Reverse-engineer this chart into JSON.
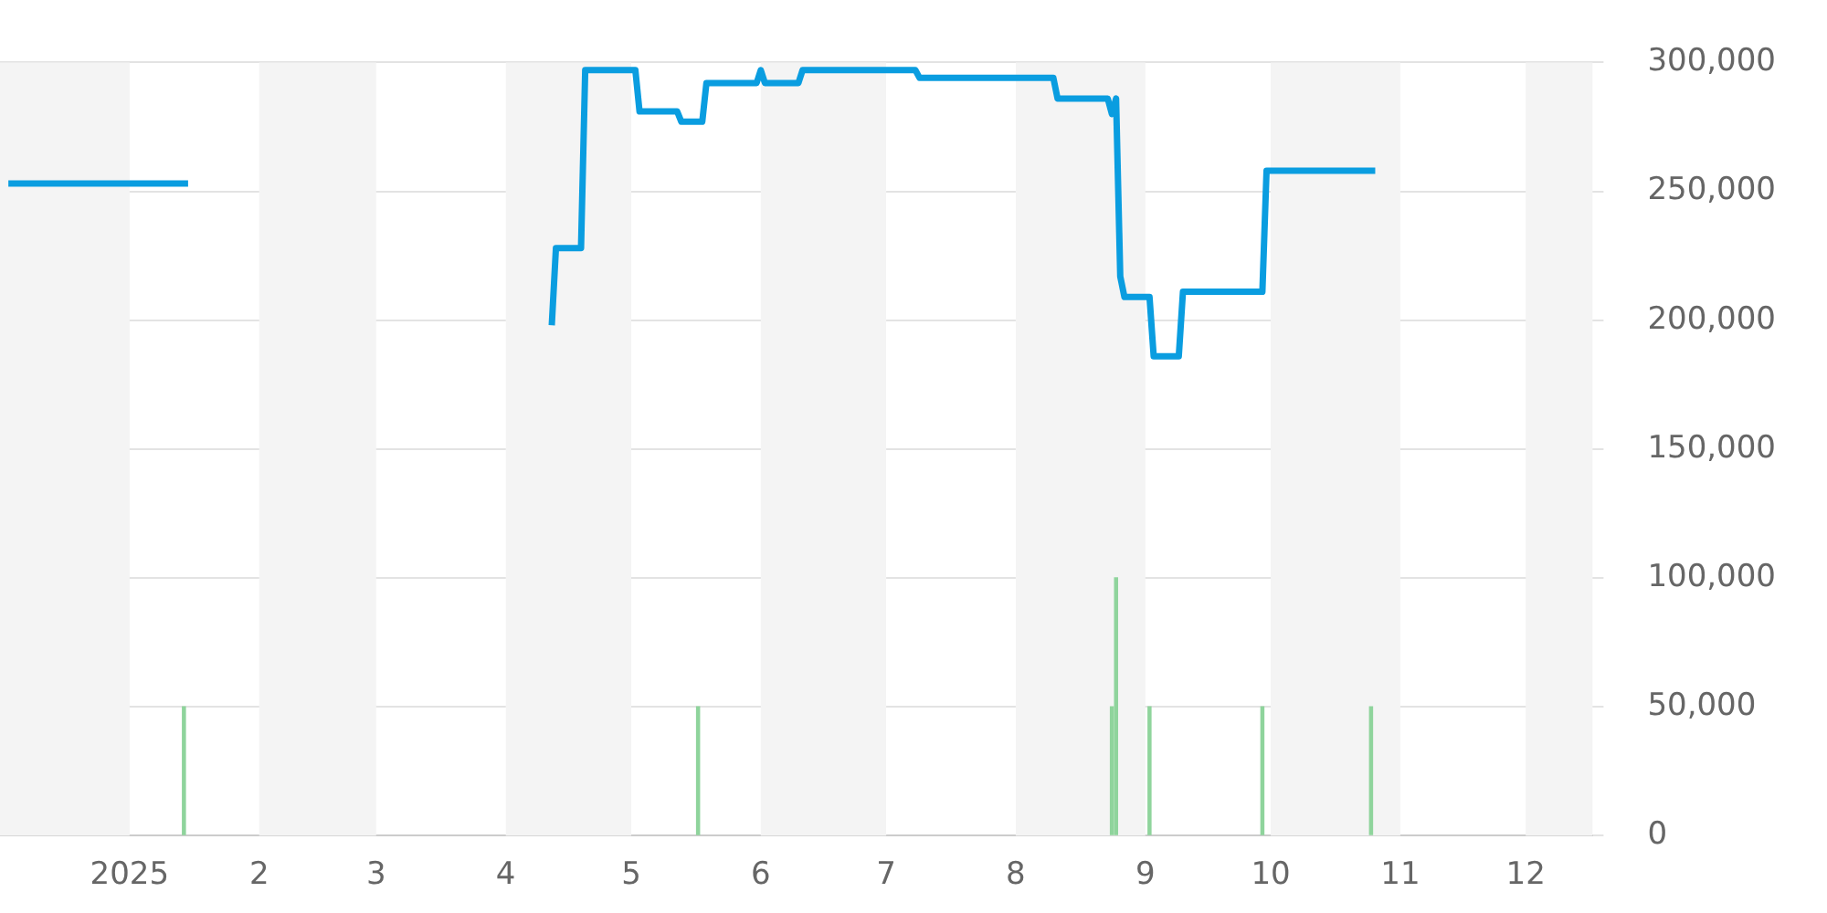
{
  "chart_data": {
    "type": "line",
    "xlim": [
      "2024-12-01",
      "2025-12-17"
    ],
    "xticks": [
      {
        "value": "2025-01-01",
        "label": "2025"
      },
      {
        "value": "2025-02-01",
        "label": "2"
      },
      {
        "value": "2025-03-01",
        "label": "3"
      },
      {
        "value": "2025-04-01",
        "label": "4"
      },
      {
        "value": "2025-05-01",
        "label": "5"
      },
      {
        "value": "2025-06-01",
        "label": "6"
      },
      {
        "value": "2025-07-01",
        "label": "7"
      },
      {
        "value": "2025-08-01",
        "label": "8"
      },
      {
        "value": "2025-09-01",
        "label": "9"
      },
      {
        "value": "2025-10-01",
        "label": "10"
      },
      {
        "value": "2025-11-01",
        "label": "11"
      },
      {
        "value": "2025-12-01",
        "label": "12"
      }
    ],
    "ylim": [
      0,
      300000
    ],
    "yticks": [
      {
        "value": 0,
        "label": "0"
      },
      {
        "value": 50000,
        "label": "50,000"
      },
      {
        "value": 100000,
        "label": "100,000"
      },
      {
        "value": 150000,
        "label": "150,000"
      },
      {
        "value": 200000,
        "label": "200,000"
      },
      {
        "value": 250000,
        "label": "250,000"
      },
      {
        "value": 300000,
        "label": "300,000"
      }
    ],
    "grid": "y",
    "legend": false,
    "bands": [
      {
        "axis": "x",
        "from": "2024-12-01",
        "to": "2025-01-01",
        "color": "#f4f4f4"
      },
      {
        "axis": "x",
        "from": "2025-02-01",
        "to": "2025-03-01",
        "color": "#f4f4f4"
      },
      {
        "axis": "x",
        "from": "2025-04-01",
        "to": "2025-05-01",
        "color": "#f4f4f4"
      },
      {
        "axis": "x",
        "from": "2025-06-01",
        "to": "2025-07-01",
        "color": "#f4f4f4"
      },
      {
        "axis": "x",
        "from": "2025-08-01",
        "to": "2025-09-01",
        "color": "#f4f4f4"
      },
      {
        "axis": "x",
        "from": "2025-10-01",
        "to": "2025-11-01",
        "color": "#f4f4f4"
      },
      {
        "axis": "x",
        "from": "2025-12-01",
        "to": "2025-12-17",
        "color": "#f4f4f4"
      }
    ],
    "series": [
      {
        "type": "bar",
        "color": "#8fd49c",
        "x": [
          "2025-01-14",
          "2025-05-17",
          "2025-08-24",
          "2025-08-25",
          "2025-09-02",
          "2025-09-29",
          "2025-10-25"
        ],
        "values": [
          50000,
          50000,
          50000,
          100000,
          50000,
          50000,
          50000
        ]
      },
      {
        "color": "#0a9de0",
        "x": [
          "2024-12-03",
          "2025-01-15",
          "2025-02-15",
          "2025-04-12",
          "2025-04-13",
          "2025-04-19",
          "2025-04-20",
          "2025-05-02",
          "2025-05-03",
          "2025-05-12",
          "2025-05-13",
          "2025-05-18",
          "2025-05-19",
          "2025-05-31",
          "2025-06-01",
          "2025-06-02",
          "2025-06-10",
          "2025-06-11",
          "2025-07-08",
          "2025-07-09",
          "2025-08-10",
          "2025-08-11",
          "2025-08-23",
          "2025-08-24",
          "2025-08-25",
          "2025-08-26",
          "2025-08-27",
          "2025-09-02",
          "2025-09-03",
          "2025-09-09",
          "2025-09-10",
          "2025-09-29",
          "2025-09-30",
          "2025-10-26"
        ],
        "values": [
          253000,
          253000,
          null,
          198000,
          228000,
          228000,
          297000,
          297000,
          281000,
          281000,
          277000,
          277000,
          292000,
          292000,
          297000,
          292000,
          292000,
          297000,
          297000,
          294000,
          294000,
          286000,
          286000,
          280000,
          286000,
          217000,
          209000,
          209000,
          186000,
          186000,
          211000,
          211000,
          258000,
          258000
        ]
      }
    ]
  }
}
